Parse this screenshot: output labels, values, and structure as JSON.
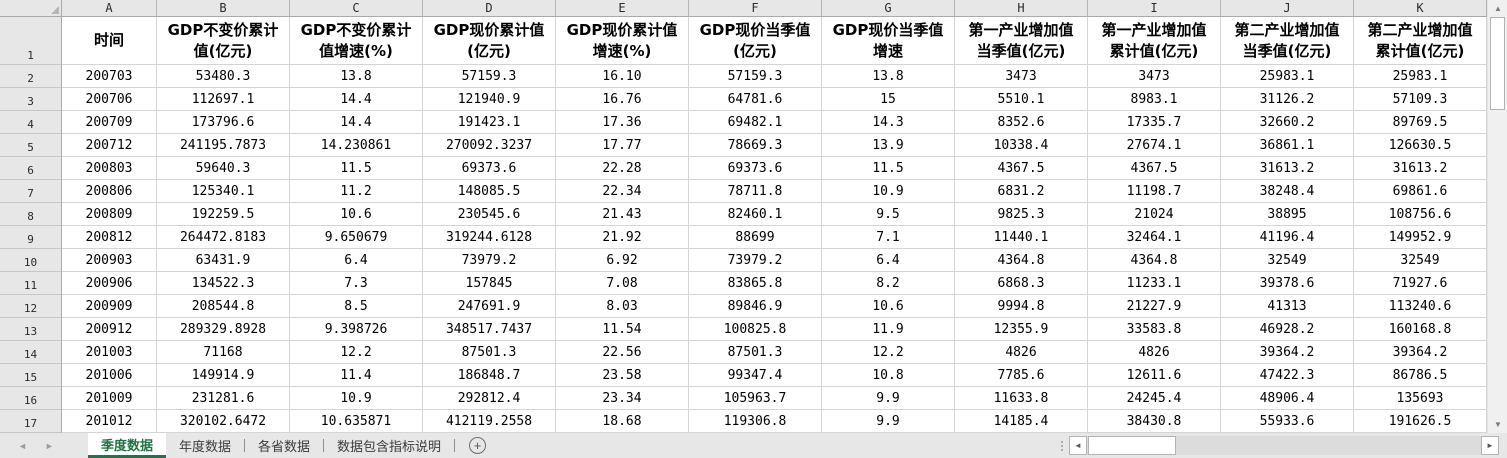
{
  "sheet": {
    "column_letters": [
      "A",
      "B",
      "C",
      "D",
      "E",
      "F",
      "G",
      "H",
      "I",
      "J",
      "K"
    ],
    "row_numbers": [
      "1",
      "2",
      "3",
      "4",
      "5",
      "6",
      "7",
      "8",
      "9",
      "10",
      "11",
      "12",
      "13",
      "14",
      "15",
      "16",
      "17"
    ],
    "headers": [
      "时间",
      "GDP不变价累计\n值(亿元)",
      "GDP不变价累计\n值增速(%)",
      "GDP现价累计值\n(亿元)",
      "GDP现价累计值\n增速(%)",
      "GDP现价当季值\n(亿元)",
      "GDP现价当季值\n增速",
      "第一产业增加值\n当季值(亿元)",
      "第一产业增加值\n累计值(亿元)",
      "第二产业增加值\n当季值(亿元)",
      "第二产业增加值\n累计值(亿元)"
    ],
    "rows": [
      [
        "200703",
        "53480.3",
        "13.8",
        "57159.3",
        "16.10",
        "57159.3",
        "13.8",
        "3473",
        "3473",
        "25983.1",
        "25983.1"
      ],
      [
        "200706",
        "112697.1",
        "14.4",
        "121940.9",
        "16.76",
        "64781.6",
        "15",
        "5510.1",
        "8983.1",
        "31126.2",
        "57109.3"
      ],
      [
        "200709",
        "173796.6",
        "14.4",
        "191423.1",
        "17.36",
        "69482.1",
        "14.3",
        "8352.6",
        "17335.7",
        "32660.2",
        "89769.5"
      ],
      [
        "200712",
        "241195.7873",
        "14.230861",
        "270092.3237",
        "17.77",
        "78669.3",
        "13.9",
        "10338.4",
        "27674.1",
        "36861.1",
        "126630.5"
      ],
      [
        "200803",
        "59640.3",
        "11.5",
        "69373.6",
        "22.28",
        "69373.6",
        "11.5",
        "4367.5",
        "4367.5",
        "31613.2",
        "31613.2"
      ],
      [
        "200806",
        "125340.1",
        "11.2",
        "148085.5",
        "22.34",
        "78711.8",
        "10.9",
        "6831.2",
        "11198.7",
        "38248.4",
        "69861.6"
      ],
      [
        "200809",
        "192259.5",
        "10.6",
        "230545.6",
        "21.43",
        "82460.1",
        "9.5",
        "9825.3",
        "21024",
        "38895",
        "108756.6"
      ],
      [
        "200812",
        "264472.8183",
        "9.650679",
        "319244.6128",
        "21.92",
        "88699",
        "7.1",
        "11440.1",
        "32464.1",
        "41196.4",
        "149952.9"
      ],
      [
        "200903",
        "63431.9",
        "6.4",
        "73979.2",
        "6.92",
        "73979.2",
        "6.4",
        "4364.8",
        "4364.8",
        "32549",
        "32549"
      ],
      [
        "200906",
        "134522.3",
        "7.3",
        "157845",
        "7.08",
        "83865.8",
        "8.2",
        "6868.3",
        "11233.1",
        "39378.6",
        "71927.6"
      ],
      [
        "200909",
        "208544.8",
        "8.5",
        "247691.9",
        "8.03",
        "89846.9",
        "10.6",
        "9994.8",
        "21227.9",
        "41313",
        "113240.6"
      ],
      [
        "200912",
        "289329.8928",
        "9.398726",
        "348517.7437",
        "11.54",
        "100825.8",
        "11.9",
        "12355.9",
        "33583.8",
        "46928.2",
        "160168.8"
      ],
      [
        "201003",
        "71168",
        "12.2",
        "87501.3",
        "22.56",
        "87501.3",
        "12.2",
        "4826",
        "4826",
        "39364.2",
        "39364.2"
      ],
      [
        "201006",
        "149914.9",
        "11.4",
        "186848.7",
        "23.58",
        "99347.4",
        "10.8",
        "7785.6",
        "12611.6",
        "47422.3",
        "86786.5"
      ],
      [
        "201009",
        "231281.6",
        "10.9",
        "292812.4",
        "23.34",
        "105963.7",
        "9.9",
        "11633.8",
        "24245.4",
        "48906.4",
        "135693"
      ],
      [
        "201012",
        "320102.6472",
        "10.635871",
        "412119.2558",
        "18.68",
        "119306.8",
        "9.9",
        "14185.4",
        "38430.8",
        "55933.6",
        "191626.5"
      ]
    ]
  },
  "tab_bar": {
    "tabs": [
      {
        "label": "季度数据",
        "active": true
      },
      {
        "label": "年度数据",
        "active": false
      },
      {
        "label": "各省数据",
        "active": false
      },
      {
        "label": "数据包含指标说明",
        "active": false
      }
    ],
    "add_button": "+",
    "nav_prev": "◄",
    "nav_next": "►"
  },
  "scrollbars": {
    "up_arrow": "▲",
    "down_arrow": "▼",
    "left_arrow": "◄",
    "right_arrow": "►"
  },
  "colors": {
    "accent_green": "#217346",
    "header_bg": "#e7e7e7",
    "gridline": "#d5d5d5"
  }
}
